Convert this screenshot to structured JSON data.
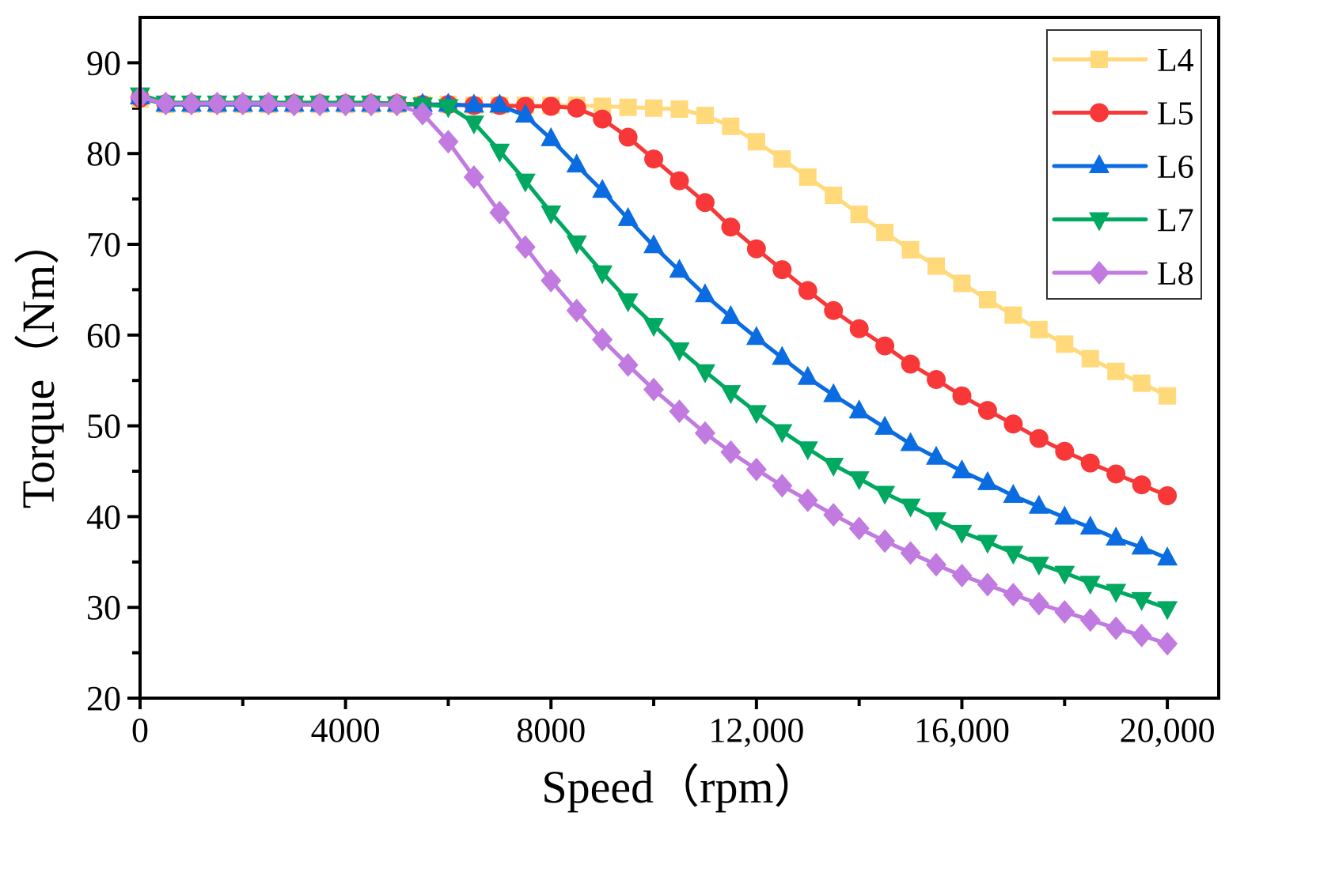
{
  "chart_data": {
    "type": "line",
    "title": "",
    "xlabel": "Speed（rpm）",
    "ylabel": "Torque（Nm）",
    "xlim": [
      0,
      21000
    ],
    "ylim": [
      20,
      95
    ],
    "x_ticks": [
      0,
      4000,
      8000,
      12000,
      16000,
      20000
    ],
    "x_tick_labels": [
      "0",
      "4000",
      "8000",
      "12,000",
      "16,000",
      "20,000"
    ],
    "y_ticks": [
      20,
      30,
      40,
      50,
      60,
      70,
      80,
      90
    ],
    "y_tick_labels": [
      "20",
      "30",
      "40",
      "50",
      "60",
      "70",
      "80",
      "90"
    ],
    "legend_position": "top-right",
    "grid": false,
    "x": [
      0,
      500,
      1000,
      1500,
      2000,
      2500,
      3000,
      3500,
      4000,
      4500,
      5000,
      5500,
      6000,
      6500,
      7000,
      7500,
      8000,
      8500,
      9000,
      9500,
      10000,
      10500,
      11000,
      11500,
      12000,
      12500,
      13000,
      13500,
      14000,
      14500,
      15000,
      15500,
      16000,
      16500,
      17000,
      17500,
      18000,
      18500,
      19000,
      19500,
      20000
    ],
    "series": [
      {
        "name": "L4",
        "color": "#FFD97A",
        "marker": "square",
        "values": [
          86.0,
          85.4,
          85.4,
          85.4,
          85.4,
          85.4,
          85.4,
          85.4,
          85.4,
          85.4,
          85.4,
          85.4,
          85.4,
          85.3,
          85.3,
          85.3,
          85.3,
          85.3,
          85.2,
          85.1,
          85.0,
          84.9,
          84.2,
          83.0,
          81.3,
          79.4,
          77.4,
          75.4,
          73.3,
          71.3,
          69.4,
          67.6,
          65.7,
          63.9,
          62.2,
          60.6,
          59.0,
          57.4,
          56.0,
          54.7,
          53.3
        ]
      },
      {
        "name": "L5",
        "color": "#F83838",
        "marker": "circle",
        "values": [
          86.1,
          85.5,
          85.5,
          85.5,
          85.5,
          85.5,
          85.5,
          85.5,
          85.5,
          85.5,
          85.5,
          85.4,
          85.4,
          85.3,
          85.3,
          85.2,
          85.2,
          85.0,
          83.8,
          81.8,
          79.4,
          77.0,
          74.6,
          71.9,
          69.5,
          67.2,
          64.9,
          62.7,
          60.7,
          58.8,
          56.8,
          55.1,
          53.3,
          51.7,
          50.2,
          48.6,
          47.2,
          45.9,
          44.7,
          43.5,
          42.3
        ]
      },
      {
        "name": "L6",
        "color": "#0A6CE0",
        "marker": "triangle-up",
        "values": [
          86.2,
          85.4,
          85.4,
          85.4,
          85.4,
          85.4,
          85.4,
          85.4,
          85.4,
          85.4,
          85.4,
          85.4,
          85.4,
          85.3,
          85.3,
          84.2,
          81.6,
          78.7,
          75.9,
          72.8,
          69.8,
          67.1,
          64.4,
          62.0,
          59.7,
          57.5,
          55.3,
          53.4,
          51.6,
          49.8,
          48.0,
          46.5,
          45.0,
          43.7,
          42.3,
          41.1,
          39.9,
          38.8,
          37.6,
          36.6,
          35.4
        ]
      },
      {
        "name": "L7",
        "color": "#00A860",
        "marker": "triangle-down",
        "values": [
          86.5,
          85.6,
          85.6,
          85.6,
          85.6,
          85.6,
          85.6,
          85.6,
          85.6,
          85.6,
          85.5,
          85.4,
          85.2,
          83.4,
          80.3,
          77.0,
          73.5,
          70.2,
          66.9,
          63.8,
          61.1,
          58.4,
          56.0,
          53.7,
          51.5,
          49.4,
          47.5,
          45.7,
          44.2,
          42.6,
          41.2,
          39.7,
          38.3,
          37.2,
          36.0,
          34.8,
          33.8,
          32.7,
          31.8,
          30.9,
          29.9
        ]
      },
      {
        "name": "L8",
        "color": "#C07AE0",
        "marker": "diamond",
        "values": [
          86.2,
          85.5,
          85.5,
          85.5,
          85.5,
          85.5,
          85.4,
          85.4,
          85.4,
          85.4,
          85.4,
          84.4,
          81.3,
          77.4,
          73.5,
          69.7,
          66.0,
          62.7,
          59.5,
          56.7,
          54.0,
          51.6,
          49.2,
          47.1,
          45.2,
          43.4,
          41.8,
          40.2,
          38.7,
          37.3,
          36.0,
          34.7,
          33.5,
          32.5,
          31.4,
          30.4,
          29.5,
          28.6,
          27.7,
          26.9,
          26.0
        ]
      }
    ]
  }
}
